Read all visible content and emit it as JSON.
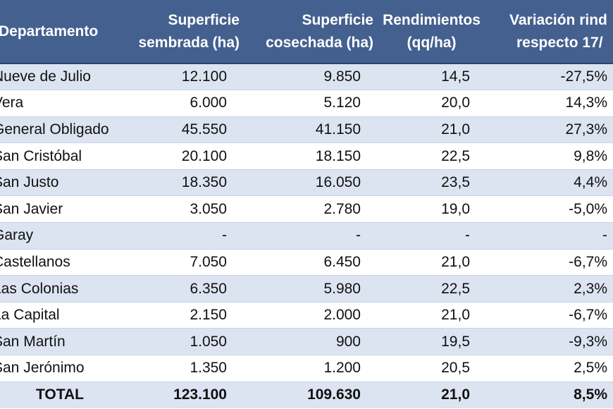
{
  "table": {
    "headers": [
      {
        "line1": "Departamento",
        "line2": ""
      },
      {
        "line1": "Superficie",
        "line2": "sembrada (ha)"
      },
      {
        "line1": "Superficie",
        "line2": "cosechada (ha)"
      },
      {
        "line1": "Rendimientos",
        "line2": "(qq/ha)"
      },
      {
        "line1": "Variación rind",
        "line2": "respecto 17/"
      }
    ],
    "rows": [
      {
        "dept": "Nueve de Julio",
        "sembrada": "12.100",
        "cosechada": "9.850",
        "rend": "14,5",
        "var": "-27,5%"
      },
      {
        "dept": "Vera",
        "sembrada": "6.000",
        "cosechada": "5.120",
        "rend": "20,0",
        "var": "14,3%"
      },
      {
        "dept": "General Obligado",
        "sembrada": "45.550",
        "cosechada": "41.150",
        "rend": "21,0",
        "var": "27,3%"
      },
      {
        "dept": "San Cristóbal",
        "sembrada": "20.100",
        "cosechada": "18.150",
        "rend": "22,5",
        "var": "9,8%"
      },
      {
        "dept": "San Justo",
        "sembrada": "18.350",
        "cosechada": "16.050",
        "rend": "23,5",
        "var": "4,4%"
      },
      {
        "dept": "San Javier",
        "sembrada": "3.050",
        "cosechada": "2.780",
        "rend": "19,0",
        "var": "-5,0%"
      },
      {
        "dept": "Garay",
        "sembrada": "-",
        "cosechada": "-",
        "rend": "-",
        "var": "-"
      },
      {
        "dept": "Castellanos",
        "sembrada": "7.050",
        "cosechada": "6.450",
        "rend": "21,0",
        "var": "-6,7%"
      },
      {
        "dept": "Las Colonias",
        "sembrada": "6.350",
        "cosechada": "5.980",
        "rend": "22,5",
        "var": "2,3%"
      },
      {
        "dept": "La Capital",
        "sembrada": "2.150",
        "cosechada": "2.000",
        "rend": "21,0",
        "var": "-6,7%"
      },
      {
        "dept": "San Martín",
        "sembrada": "1.050",
        "cosechada": "900",
        "rend": "19,5",
        "var": "-9,3%"
      },
      {
        "dept": "San Jerónimo",
        "sembrada": "1.350",
        "cosechada": "1.200",
        "rend": "20,5",
        "var": "2,5%"
      }
    ],
    "total": {
      "dept": "TOTAL",
      "sembrada": "123.100",
      "cosechada": "109.630",
      "rend": "21,0",
      "var": "8,5%"
    }
  },
  "colors": {
    "header_bg": "#44608f",
    "band_bg": "#dce4f1",
    "header_text": "#ffffff"
  }
}
